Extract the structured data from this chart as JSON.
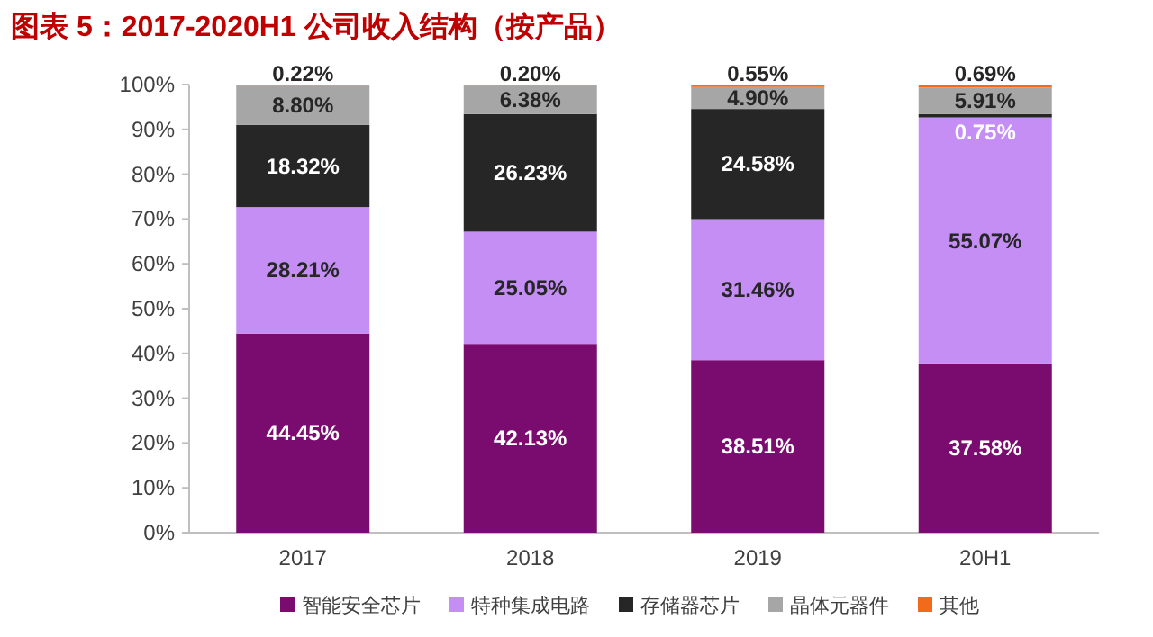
{
  "chart_data": {
    "type": "bar",
    "stacked": true,
    "title": "图表 5：2017-2020H1 公司收入结构（按产品）",
    "categories": [
      "2017",
      "2018",
      "2019",
      "20H1"
    ],
    "series": [
      {
        "name": "智能安全芯片",
        "color": "#7a0b6f",
        "values": [
          44.45,
          42.13,
          38.51,
          37.58
        ],
        "value_labels": [
          "44.45%",
          "42.13%",
          "38.51%",
          "37.58%"
        ]
      },
      {
        "name": "特种集成电路",
        "color": "#c58ef5",
        "values": [
          28.21,
          25.05,
          31.46,
          55.07
        ],
        "value_labels": [
          "28.21%",
          "25.05%",
          "31.46%",
          "55.07%"
        ]
      },
      {
        "name": "存储器芯片",
        "color": "#262626",
        "values": [
          18.32,
          26.23,
          24.58,
          0.75
        ],
        "value_labels": [
          "18.32%",
          "26.23%",
          "24.58%",
          "0.75%"
        ]
      },
      {
        "name": "晶体元器件",
        "color": "#a6a6a6",
        "values": [
          8.8,
          6.38,
          4.9,
          5.91
        ],
        "value_labels": [
          "8.80%",
          "6.38%",
          "4.90%",
          "5.91%"
        ]
      },
      {
        "name": "其他",
        "color": "#f26b1d",
        "values": [
          0.22,
          0.2,
          0.55,
          0.69
        ],
        "value_labels": [
          "0.22%",
          "0.20%",
          "0.55%",
          "0.69%"
        ]
      }
    ],
    "ylim": [
      0,
      100
    ],
    "yticks": [
      {
        "value": 0,
        "label": "0%"
      },
      {
        "value": 10,
        "label": "10%"
      },
      {
        "value": 20,
        "label": "20%"
      },
      {
        "value": 30,
        "label": "30%"
      },
      {
        "value": 40,
        "label": "40%"
      },
      {
        "value": 50,
        "label": "50%"
      },
      {
        "value": 60,
        "label": "60%"
      },
      {
        "value": 70,
        "label": "70%"
      },
      {
        "value": 80,
        "label": "80%"
      },
      {
        "value": 90,
        "label": "90%"
      },
      {
        "value": 100,
        "label": "100%"
      }
    ],
    "legend": "bottom",
    "grid": false
  }
}
